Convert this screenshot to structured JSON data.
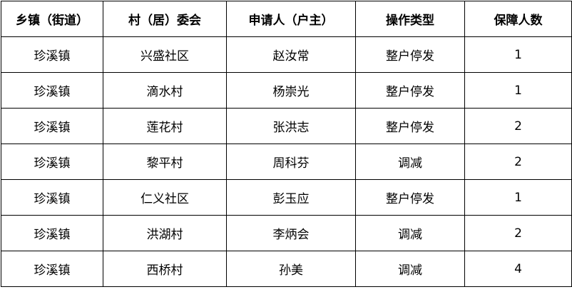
{
  "headers": [
    "乡镇（街道）",
    "村（居）委会",
    "申请人（户主）",
    "操作类型",
    "保障人数"
  ],
  "rows": [
    [
      "珍溪镇",
      "兴盛社区",
      "赵汝常",
      "整户停发",
      "1"
    ],
    [
      "珍溪镇",
      "滴水村",
      "杨崇光",
      "整户停发",
      "1"
    ],
    [
      "珍溪镇",
      "莲花村",
      "张洪志",
      "整户停发",
      "2"
    ],
    [
      "珍溪镇",
      "黎平村",
      "周科芬",
      "调减",
      "2"
    ],
    [
      "珍溪镇",
      "仁义社区",
      "彭玉应",
      "整户停发",
      "1"
    ],
    [
      "珍溪镇",
      "洪湖村",
      "李炳会",
      "调减",
      "2"
    ],
    [
      "珍溪镇",
      "西桥村",
      "孙美",
      "调减",
      "4"
    ]
  ]
}
